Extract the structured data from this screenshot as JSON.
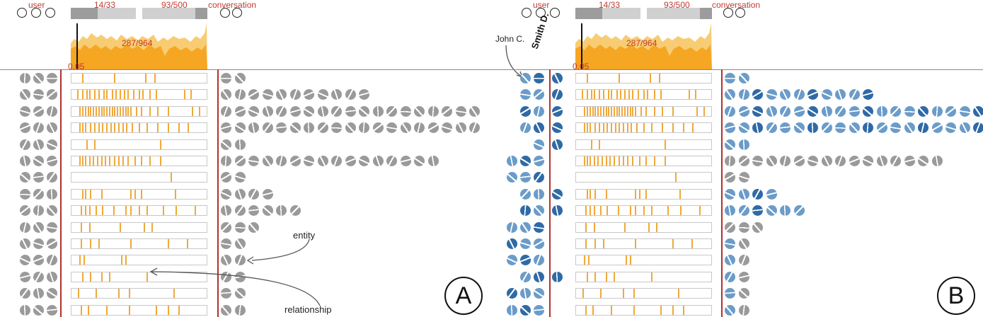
{
  "panels": [
    {
      "id": "A",
      "user_label": "user",
      "conversation_label": "conversation",
      "range1_label": "14/33",
      "range2_label": "93/500",
      "histogram_label": "287/964",
      "threshold_label": "0.05",
      "badge": "A",
      "annotations": {
        "entity": "entity",
        "relationship": "relationship"
      },
      "rows": [
        {
          "left": 3,
          "right": 2,
          "ticks": [
            0.08,
            0.32,
            0.55,
            0.62
          ]
        },
        {
          "left": 3,
          "right": 11,
          "ticks": [
            0.04,
            0.08,
            0.11,
            0.13,
            0.17,
            0.2,
            0.24,
            0.26,
            0.3,
            0.33,
            0.36,
            0.39,
            0.42,
            0.46,
            0.5,
            0.53,
            0.58,
            0.63,
            0.84,
            0.89
          ]
        },
        {
          "left": 3,
          "right": 19,
          "ticks": [
            0.06,
            0.08,
            0.1,
            0.12,
            0.14,
            0.16,
            0.18,
            0.2,
            0.22,
            0.24,
            0.26,
            0.28,
            0.3,
            0.32,
            0.34,
            0.36,
            0.38,
            0.4,
            0.42,
            0.44,
            0.48,
            0.52,
            0.58,
            0.64,
            0.72,
            0.9,
            0.95
          ]
        },
        {
          "left": 3,
          "right": 19,
          "ticks": [
            0.06,
            0.08,
            0.1,
            0.14,
            0.17,
            0.2,
            0.23,
            0.26,
            0.29,
            0.32,
            0.35,
            0.38,
            0.41,
            0.45,
            0.5,
            0.56,
            0.64,
            0.72,
            0.8,
            0.87
          ]
        },
        {
          "left": 3,
          "right": 2,
          "ticks": [
            0.11,
            0.17,
            0.66
          ]
        },
        {
          "left": 3,
          "right": 16,
          "ticks": [
            0.06,
            0.08,
            0.1,
            0.13,
            0.16,
            0.19,
            0.22,
            0.25,
            0.28,
            0.32,
            0.35,
            0.38,
            0.42,
            0.47,
            0.52,
            0.58,
            0.66
          ]
        },
        {
          "left": 3,
          "right": 2,
          "ticks": [
            0.74
          ]
        },
        {
          "left": 3,
          "right": 4,
          "ticks": [
            0.08,
            0.1,
            0.14,
            0.22,
            0.44,
            0.47,
            0.52,
            0.77
          ]
        },
        {
          "left": 3,
          "right": 6,
          "ticks": [
            0.07,
            0.1,
            0.13,
            0.18,
            0.23,
            0.31,
            0.4,
            0.44,
            0.5,
            0.56,
            0.68,
            0.78,
            0.92
          ]
        },
        {
          "left": 3,
          "right": 3,
          "ticks": [
            0.07,
            0.13,
            0.36,
            0.54,
            0.6
          ]
        },
        {
          "left": 3,
          "right": 2,
          "ticks": [
            0.07,
            0.14,
            0.2,
            0.44,
            0.72,
            0.86
          ]
        },
        {
          "left": 3,
          "right": 2,
          "ticks": [
            0.06,
            0.09,
            0.37,
            0.4
          ]
        },
        {
          "left": 3,
          "right": 2,
          "ticks": [
            0.08,
            0.14,
            0.22,
            0.28,
            0.56
          ]
        },
        {
          "left": 3,
          "right": 2,
          "ticks": [
            0.05,
            0.18,
            0.35,
            0.43,
            0.76
          ]
        },
        {
          "left": 3,
          "right": 2,
          "ticks": [
            0.07,
            0.12,
            0.26,
            0.43,
            0.63,
            0.72,
            0.8
          ]
        }
      ]
    },
    {
      "id": "B",
      "user_label": "user",
      "conversation_label": "conversation",
      "range1_label": "14/33",
      "range2_label": "93/500",
      "histogram_label": "287/964",
      "threshold_label": "0.05",
      "badge": "B",
      "column_label": "Smith D.",
      "user_annotation": "John C.",
      "rows": [
        {
          "left": 2,
          "right": 2,
          "ticks": [
            0.08,
            0.32,
            0.55,
            0.62
          ]
        },
        {
          "left": 2,
          "right": 11,
          "ticks": [
            0.04,
            0.08,
            0.11,
            0.13,
            0.17,
            0.2,
            0.24,
            0.26,
            0.3,
            0.33,
            0.36,
            0.39,
            0.42,
            0.46,
            0.5,
            0.53,
            0.58,
            0.63,
            0.84,
            0.89
          ]
        },
        {
          "left": 2,
          "right": 19,
          "ticks": [
            0.06,
            0.08,
            0.1,
            0.12,
            0.14,
            0.16,
            0.18,
            0.2,
            0.22,
            0.24,
            0.26,
            0.28,
            0.3,
            0.32,
            0.34,
            0.36,
            0.38,
            0.4,
            0.42,
            0.44,
            0.48,
            0.52,
            0.58,
            0.64,
            0.72,
            0.9,
            0.95
          ]
        },
        {
          "left": 2,
          "right": 19,
          "ticks": [
            0.06,
            0.08,
            0.1,
            0.14,
            0.17,
            0.2,
            0.23,
            0.26,
            0.29,
            0.32,
            0.35,
            0.38,
            0.41,
            0.45,
            0.5,
            0.56,
            0.64,
            0.72,
            0.8,
            0.87
          ]
        },
        {
          "left": 1,
          "right": 2,
          "ticks": [
            0.11,
            0.17,
            0.66
          ]
        },
        {
          "left": 3,
          "right": 16,
          "ticks": [
            0.06,
            0.08,
            0.1,
            0.13,
            0.16,
            0.19,
            0.22,
            0.25,
            0.28,
            0.32,
            0.35,
            0.38,
            0.42,
            0.47,
            0.52,
            0.58,
            0.66
          ]
        },
        {
          "left": 3,
          "right": 2,
          "ticks": [
            0.74
          ]
        },
        {
          "left": 2,
          "right": 4,
          "ticks": [
            0.08,
            0.1,
            0.14,
            0.22,
            0.44,
            0.47,
            0.52,
            0.77
          ]
        },
        {
          "left": 2,
          "right": 6,
          "ticks": [
            0.07,
            0.1,
            0.13,
            0.18,
            0.23,
            0.31,
            0.4,
            0.44,
            0.5,
            0.56,
            0.68,
            0.78,
            0.92
          ]
        },
        {
          "left": 3,
          "right": 3,
          "ticks": [
            0.07,
            0.13,
            0.36,
            0.54,
            0.6
          ]
        },
        {
          "left": 3,
          "right": 2,
          "ticks": [
            0.07,
            0.14,
            0.2,
            0.44,
            0.72,
            0.86
          ]
        },
        {
          "left": 3,
          "right": 2,
          "ticks": [
            0.06,
            0.09,
            0.37,
            0.4
          ]
        },
        {
          "left": 2,
          "right": 2,
          "ticks": [
            0.08,
            0.14,
            0.22,
            0.28,
            0.56
          ]
        },
        {
          "left": 3,
          "right": 2,
          "ticks": [
            0.05,
            0.18,
            0.35,
            0.43,
            0.76
          ]
        },
        {
          "left": 3,
          "right": 2,
          "ticks": [
            0.07,
            0.12,
            0.26,
            0.43,
            0.63,
            0.72,
            0.8
          ]
        }
      ]
    }
  ],
  "colors": {
    "accent_red": "#b1322c",
    "label_red": "#c23b32",
    "histogram_orange": "#f5a623",
    "tick_orange": "#f0a93a",
    "glyph_gray": "#9a9a9a",
    "glyph_blue": "#6b9cc9",
    "glyph_dark_blue": "#2f6aa6"
  },
  "icons": {
    "hollow_circle": "circle-outline-icon",
    "entity_glyph": "entity-glyph-icon"
  }
}
